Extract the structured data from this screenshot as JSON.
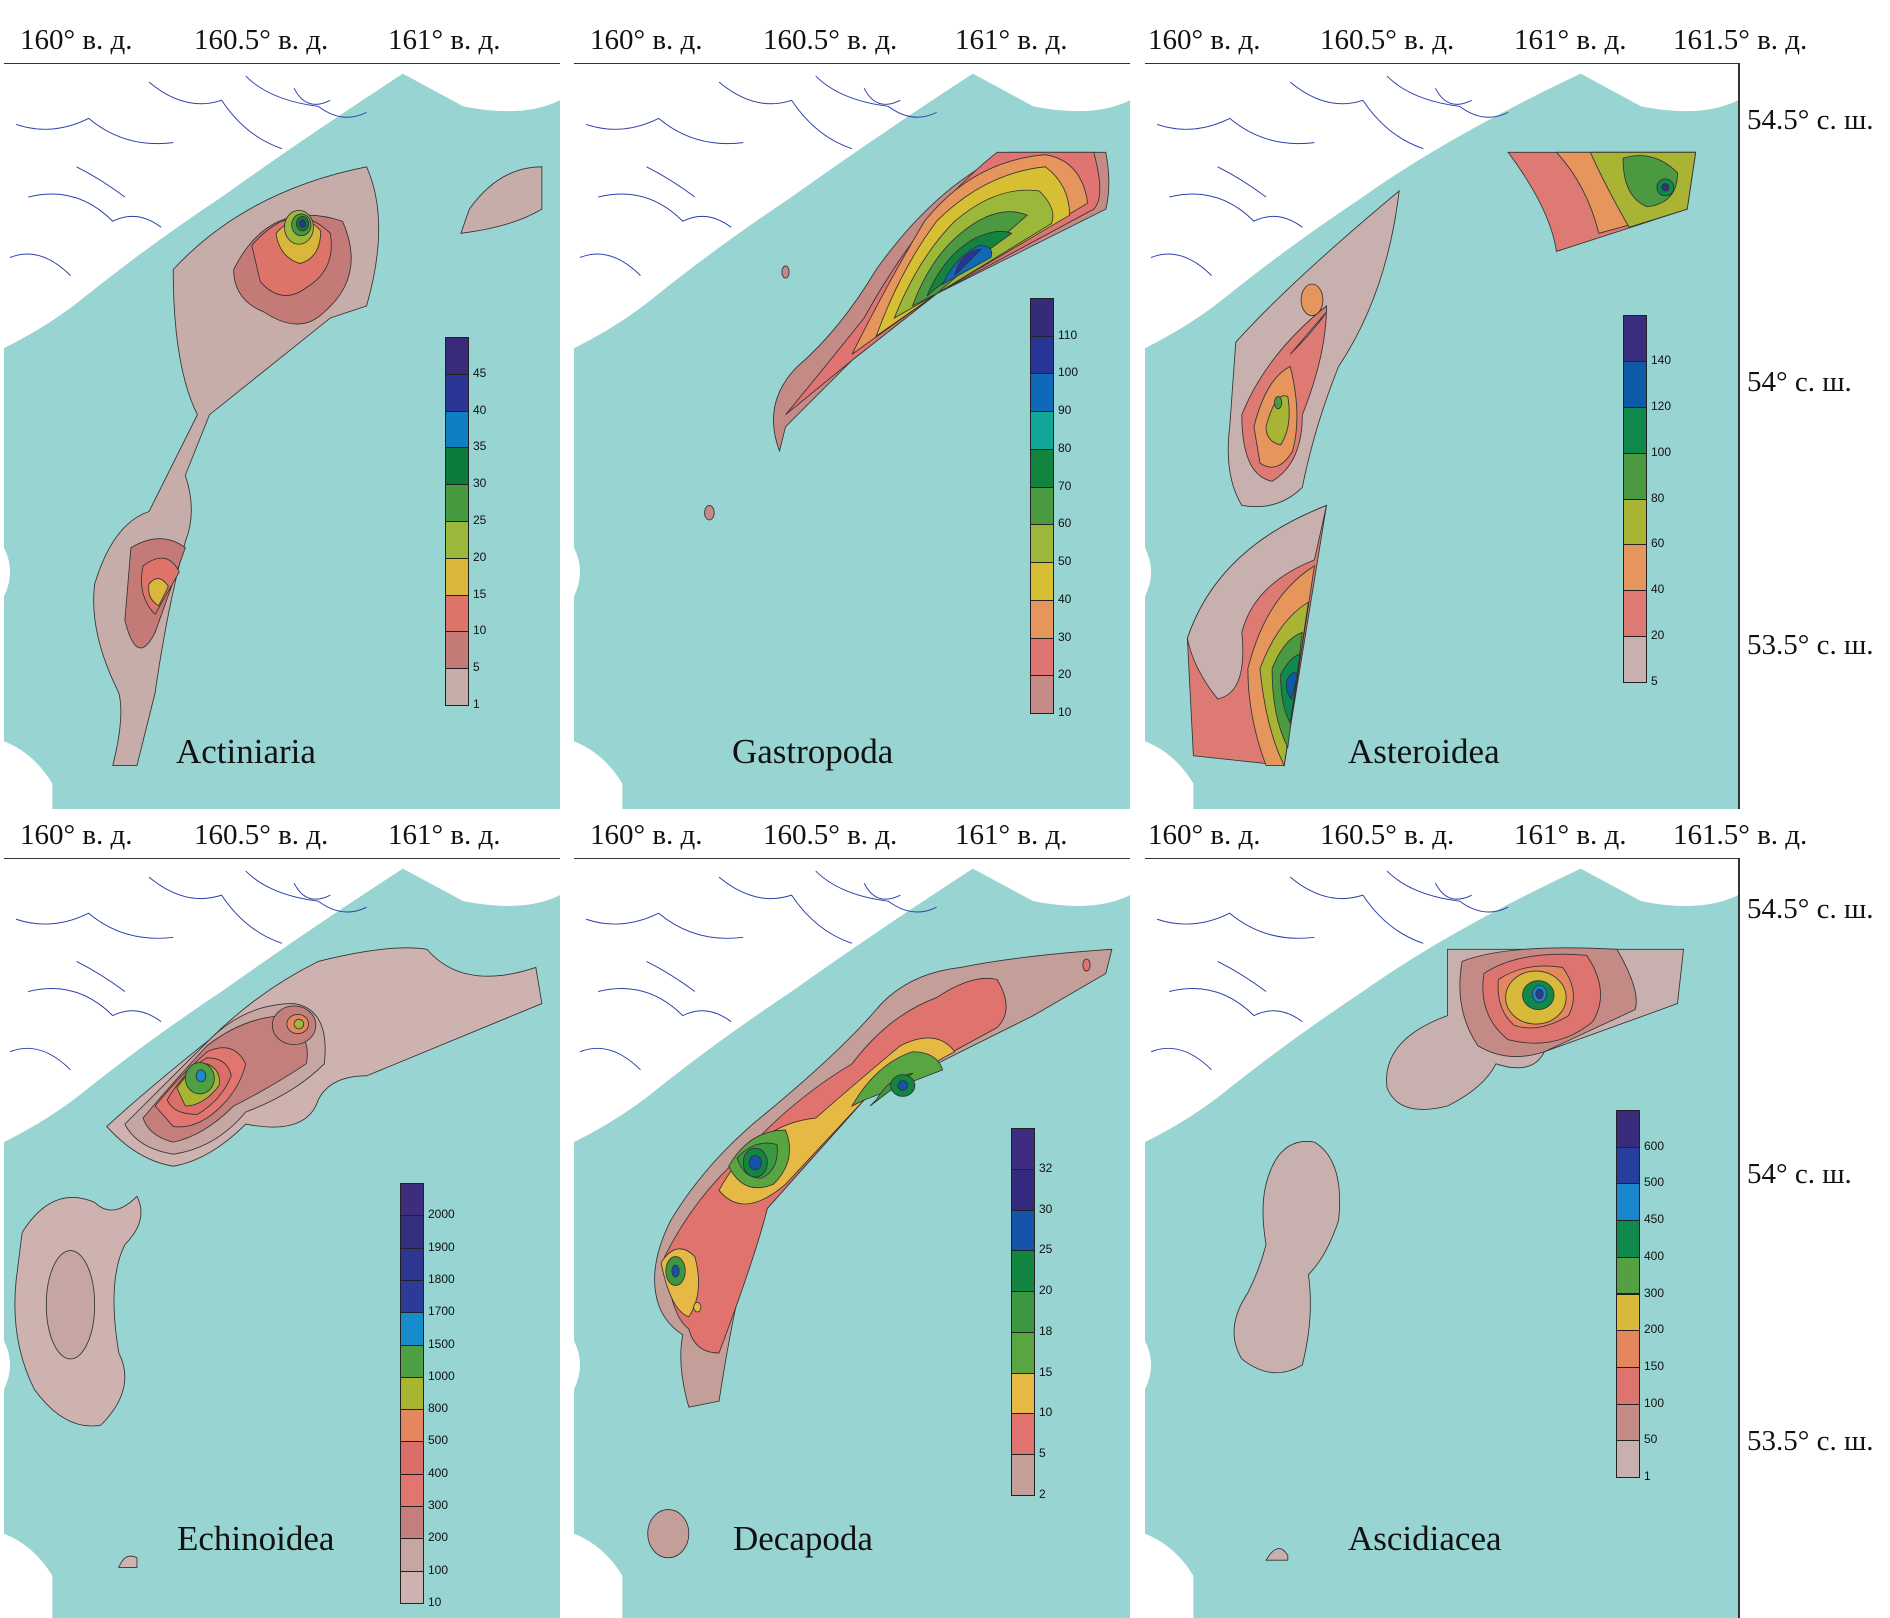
{
  "longitude_labels": {
    "col1": [
      "160° в. д.",
      "160.5° в. д.",
      "161° в. д."
    ],
    "col2": [
      "160° в. д.",
      "160.5° в. д.",
      "161° в. д."
    ],
    "col3": [
      "160° в. д.",
      "160.5° в. д.",
      "161° в. д.",
      "161.5° в. д."
    ]
  },
  "latitude_labels": [
    "54.5° с. ш.",
    "54° с. ш.",
    "53.5° с. ш."
  ],
  "colors": {
    "sea": "#98d4d1",
    "land": "#ffffff",
    "rivers": "#2b3fa8",
    "contour": "#333333"
  },
  "panels": [
    {
      "taxon": "Actiniaria",
      "legend": {
        "labels": [
          "1",
          "5",
          "10",
          "15",
          "20",
          "25",
          "30",
          "35",
          "40",
          "45"
        ],
        "colors": [
          "#c7adaa",
          "#c47a76",
          "#de7469",
          "#d9b73b",
          "#9cb83a",
          "#46993f",
          "#0b7a3a",
          "#0e7fc4",
          "#2a3595",
          "#3a2a7c"
        ]
      }
    },
    {
      "taxon": "Gastropoda",
      "legend": {
        "labels": [
          "10",
          "20",
          "30",
          "40",
          "50",
          "60",
          "70",
          "80",
          "90",
          "100",
          "110"
        ],
        "colors": [
          "#c48a86",
          "#df7472",
          "#e6955d",
          "#d7bf33",
          "#9cb83a",
          "#4b9a42",
          "#13843f",
          "#11a89a",
          "#0f68b8",
          "#283596",
          "#362b79"
        ]
      }
    },
    {
      "taxon": "Asteroidea",
      "legend": {
        "labels": [
          "5",
          "20",
          "40",
          "60",
          "80",
          "100",
          "120",
          "140"
        ],
        "colors": [
          "#c8b0ae",
          "#dd7a74",
          "#e6955d",
          "#a9b334",
          "#4b9a42",
          "#0f8a4c",
          "#0c5aa8",
          "#382d7e"
        ]
      }
    },
    {
      "taxon": "Echinoidea",
      "legend": {
        "labels": [
          "10",
          "100",
          "200",
          "300",
          "400",
          "500",
          "800",
          "1000",
          "1500",
          "1700",
          "1800",
          "1900",
          "2000"
        ],
        "colors": [
          "#cdb2b0",
          "#c5a6a2",
          "#c47f7c",
          "#e0766f",
          "#dc6e6a",
          "#e5875e",
          "#a8b531",
          "#4fa044",
          "#168ccc",
          "#2c3b98",
          "#2e3690",
          "#32307f",
          "#3e2c7c"
        ]
      }
    },
    {
      "taxon": "Decapoda",
      "legend": {
        "labels": [
          "2",
          "5",
          "10",
          "15",
          "18",
          "20",
          "25",
          "30",
          "32"
        ],
        "colors": [
          "#c49e99",
          "#e0736e",
          "#e6b844",
          "#59a542",
          "#3c9840",
          "#138540",
          "#1554a8",
          "#33297e",
          "#3e2c80"
        ]
      }
    },
    {
      "taxon": "Ascidiacea",
      "legend": {
        "labels": [
          "1",
          "50",
          "100",
          "150",
          "200",
          "300",
          "400",
          "450",
          "500",
          "600"
        ],
        "colors": [
          "#c8b0ae",
          "#c48a86",
          "#de7470",
          "#e5875e",
          "#d8b93a",
          "#55a043",
          "#0e8a4c",
          "#1a86cc",
          "#263f9e",
          "#3a2a7c"
        ]
      }
    }
  ]
}
